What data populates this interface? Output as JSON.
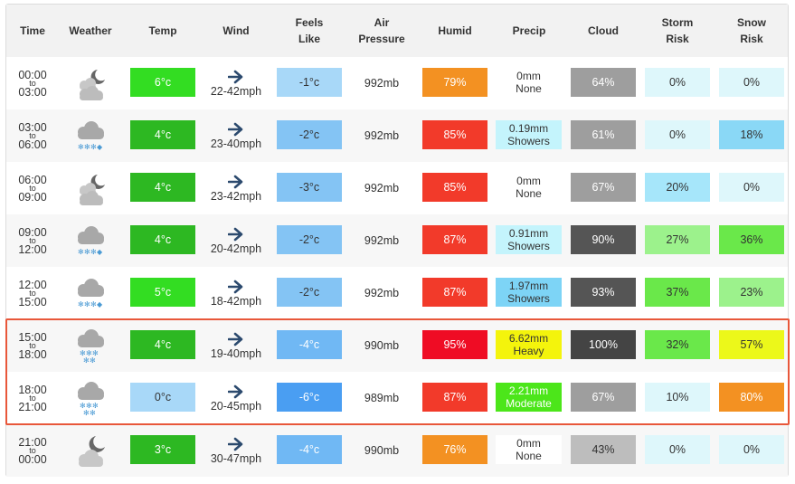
{
  "headers": {
    "time": "Time",
    "weather": "Weather",
    "temp": "Temp",
    "wind": "Wind",
    "feels_1": "Feels",
    "feels_2": "Like",
    "air_1": "Air",
    "air_2": "Pressure",
    "humid": "Humid",
    "precip": "Precip",
    "cloud": "Cloud",
    "storm_1": "Storm",
    "storm_2": "Risk",
    "snow_1": "Snow",
    "snow_2": "Risk"
  },
  "rows": [
    {
      "from": "00:00",
      "sep": "to",
      "until": "03:00",
      "icon": "partly-cloudy-night-icon",
      "temp": "6°c",
      "temp_color": "#33dd22",
      "wind_dir": "west-wind-arrow-icon",
      "wind": "22-42mph",
      "feels": "-1°c",
      "feels_color": "#a8d8f8",
      "pressure": "992mb",
      "humid": "79%",
      "humid_color": "#f39122",
      "precip_amt": "0mm",
      "precip_type": "None",
      "precip_color": "#ffffff",
      "cloud": "64%",
      "cloud_color": "#9e9e9e",
      "storm": "0%",
      "storm_color": "#def7fb",
      "snow": "0%",
      "snow_color": "#def7fb"
    },
    {
      "from": "03:00",
      "sep": "to",
      "until": "06:00",
      "icon": "snow-cloud-icon",
      "temp": "4°c",
      "temp_color": "#2db822",
      "wind_dir": "west-wind-arrow-icon",
      "wind": "23-40mph",
      "feels": "-2°c",
      "feels_color": "#84c4f4",
      "pressure": "992mb",
      "humid": "85%",
      "humid_color": "#f23a2a",
      "precip_amt": "0.19mm",
      "precip_type": "Showers",
      "precip_color": "#c4f4fc",
      "cloud": "61%",
      "cloud_color": "#9e9e9e",
      "storm": "0%",
      "storm_color": "#def7fb",
      "snow": "18%",
      "snow_color": "#8ad8f6"
    },
    {
      "from": "06:00",
      "sep": "to",
      "until": "09:00",
      "icon": "partly-cloudy-night-icon",
      "temp": "4°c",
      "temp_color": "#2db822",
      "wind_dir": "west-wind-arrow-icon",
      "wind": "23-42mph",
      "feels": "-3°c",
      "feels_color": "#84c4f4",
      "pressure": "992mb",
      "humid": "85%",
      "humid_color": "#f23a2a",
      "precip_amt": "0mm",
      "precip_type": "None",
      "precip_color": "#ffffff",
      "cloud": "67%",
      "cloud_color": "#9e9e9e",
      "storm": "20%",
      "storm_color": "#a6e6fa",
      "snow": "0%",
      "snow_color": "#def7fb"
    },
    {
      "from": "09:00",
      "sep": "to",
      "until": "12:00",
      "icon": "snow-cloud-icon",
      "temp": "4°c",
      "temp_color": "#2db822",
      "wind_dir": "west-wind-arrow-icon",
      "wind": "20-42mph",
      "feels": "-2°c",
      "feels_color": "#84c4f4",
      "pressure": "992mb",
      "humid": "87%",
      "humid_color": "#f23a2a",
      "precip_amt": "0.91mm",
      "precip_type": "Showers",
      "precip_color": "#c4f4fc",
      "cloud": "90%",
      "cloud_color": "#555555",
      "storm": "27%",
      "storm_color": "#9cf28c",
      "snow": "36%",
      "snow_color": "#6ae84a"
    },
    {
      "from": "12:00",
      "sep": "to",
      "until": "15:00",
      "icon": "snow-cloud-icon",
      "temp": "5°c",
      "temp_color": "#33dd22",
      "wind_dir": "west-wind-arrow-icon",
      "wind": "18-42mph",
      "feels": "-2°c",
      "feels_color": "#84c4f4",
      "pressure": "992mb",
      "humid": "87%",
      "humid_color": "#f23a2a",
      "precip_amt": "1.97mm",
      "precip_type": "Showers",
      "precip_color": "#7dd4f6",
      "cloud": "93%",
      "cloud_color": "#555555",
      "storm": "37%",
      "storm_color": "#6ae84a",
      "snow": "23%",
      "snow_color": "#9cf28c"
    },
    {
      "from": "15:00",
      "sep": "to",
      "until": "18:00",
      "icon": "heavy-snow-cloud-icon",
      "temp": "4°c",
      "temp_color": "#2db822",
      "wind_dir": "west-wind-arrow-icon",
      "wind": "19-40mph",
      "feels": "-4°c",
      "feels_color": "#70b8f4",
      "pressure": "990mb",
      "humid": "95%",
      "humid_color": "#ef0c24",
      "precip_amt": "6.62mm",
      "precip_type": "Heavy",
      "precip_color": "#f4f40c",
      "cloud": "100%",
      "cloud_color": "#444444",
      "storm": "32%",
      "storm_color": "#6ae84a",
      "snow": "57%",
      "snow_color": "#ecf81a"
    },
    {
      "from": "18:00",
      "sep": "to",
      "until": "21:00",
      "icon": "heavy-snow-cloud-icon",
      "temp": "0°c",
      "temp_color": "#a8d8f8",
      "wind_dir": "west-wind-arrow-icon",
      "wind": "20-45mph",
      "feels": "-6°c",
      "feels_color": "#4a9ef2",
      "pressure": "989mb",
      "humid": "87%",
      "humid_color": "#f23a2a",
      "precip_amt": "2.21mm",
      "precip_type": "Moderate",
      "precip_color": "#4ce61a",
      "cloud": "67%",
      "cloud_color": "#9e9e9e",
      "storm": "10%",
      "storm_color": "#def7fb",
      "snow": "80%",
      "snow_color": "#f39122"
    },
    {
      "from": "21:00",
      "sep": "to",
      "until": "00:00",
      "icon": "cloudy-night-icon",
      "temp": "3°c",
      "temp_color": "#2db822",
      "wind_dir": "west-wind-arrow-icon",
      "wind": "30-47mph",
      "feels": "-4°c",
      "feels_color": "#70b8f4",
      "pressure": "990mb",
      "humid": "76%",
      "humid_color": "#f39122",
      "precip_amt": "0mm",
      "precip_type": "None",
      "precip_color": "#ffffff",
      "cloud": "43%",
      "cloud_color": "#bdbdbd",
      "storm": "0%",
      "storm_color": "#def7fb",
      "snow": "0%",
      "snow_color": "#def7fb"
    }
  ],
  "highlight_color": "#e8573a"
}
